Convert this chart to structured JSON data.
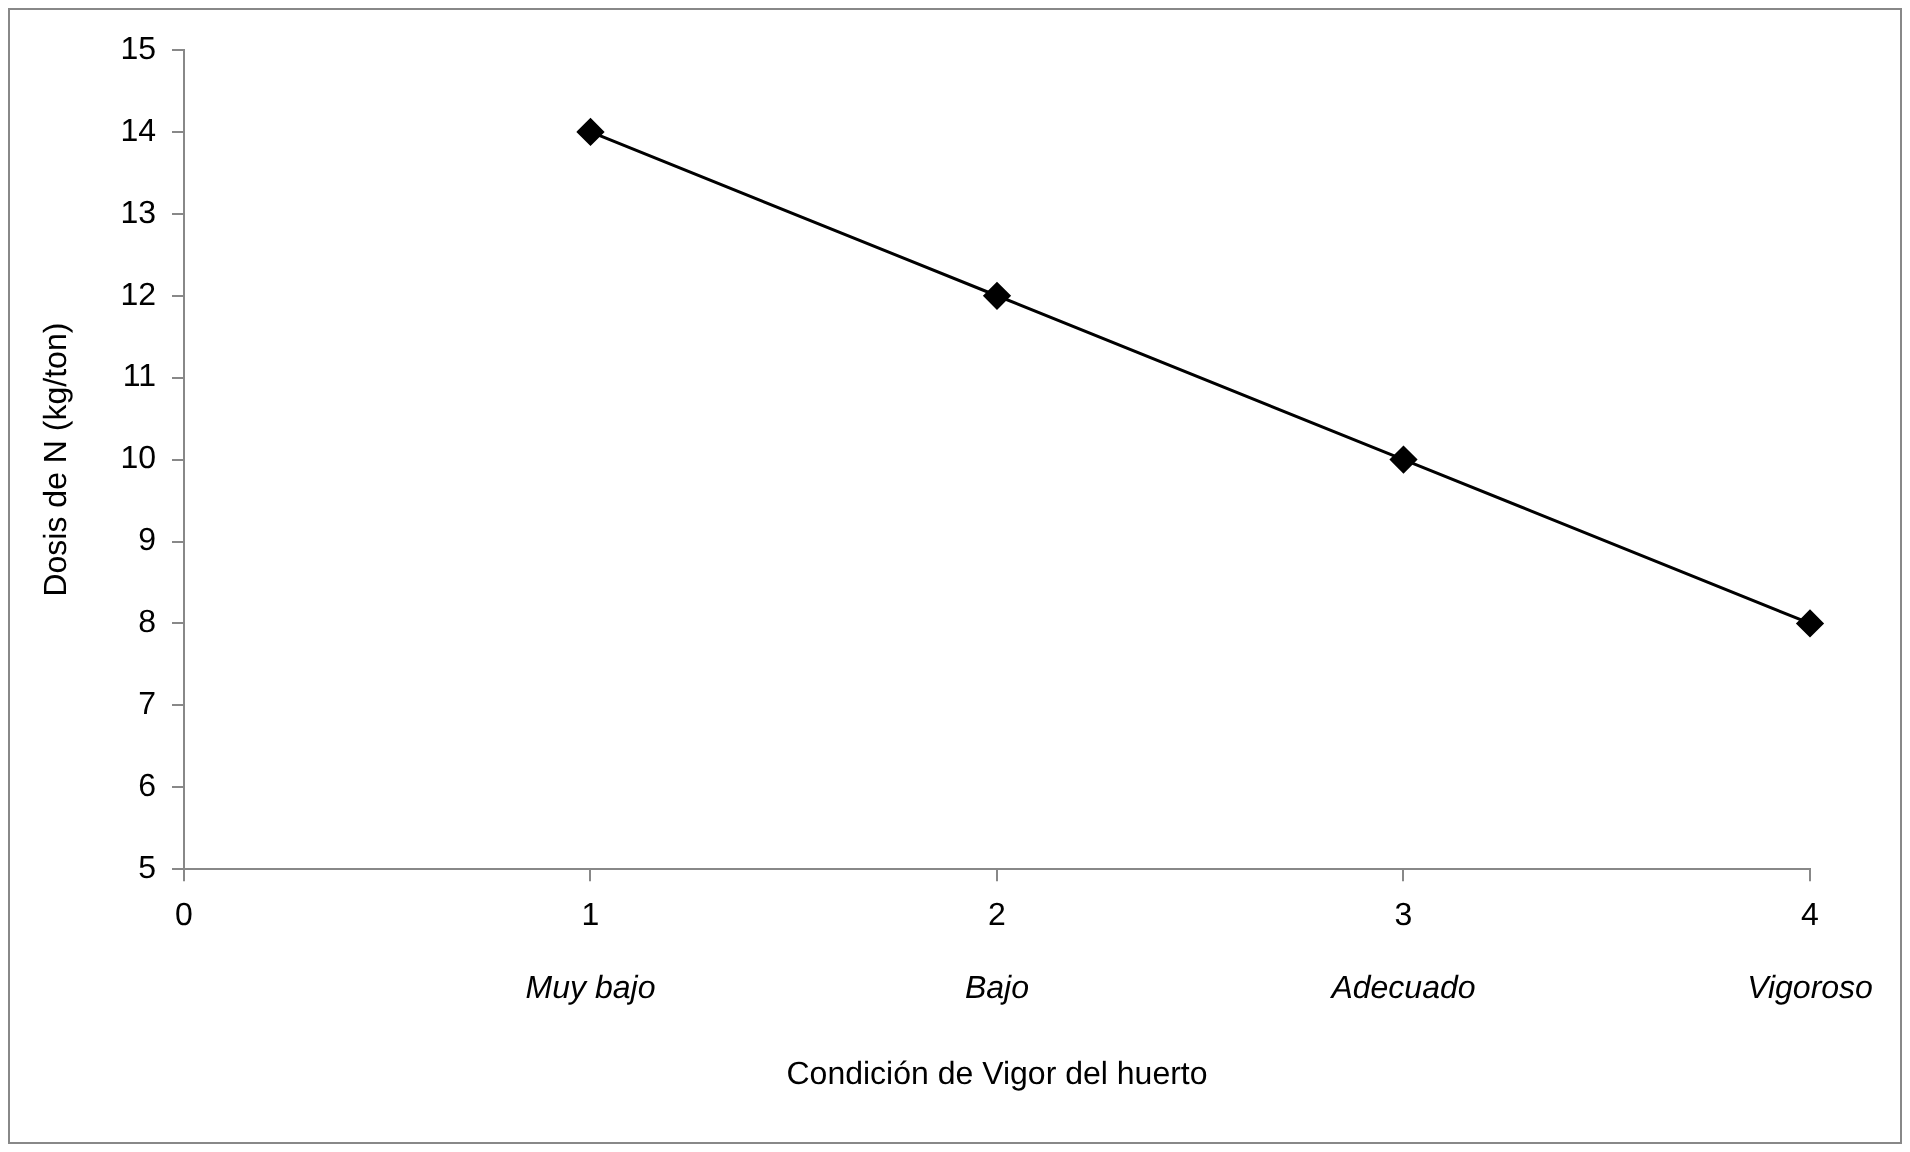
{
  "chart_data": {
    "type": "line",
    "xlabel": "Condición de Vigor del huerto",
    "ylabel": "Dosis de N (kg/ton)",
    "x": [
      1,
      2,
      3,
      4
    ],
    "series": [
      {
        "color": "#000000",
        "values": [
          14,
          12,
          10,
          8
        ]
      }
    ],
    "xlim": [
      0,
      4
    ],
    "xticks": [
      0,
      1,
      2,
      3,
      4
    ],
    "ylim": [
      5,
      15
    ],
    "yticks": [
      5,
      6,
      7,
      8,
      9,
      10,
      11,
      12,
      13,
      14,
      15
    ],
    "grid": false,
    "legend": false,
    "marker": "diamond",
    "line_style": "solid",
    "annotations": [
      "Muy bajo",
      "Bajo",
      "Adecuado",
      "Vigoroso"
    ]
  }
}
